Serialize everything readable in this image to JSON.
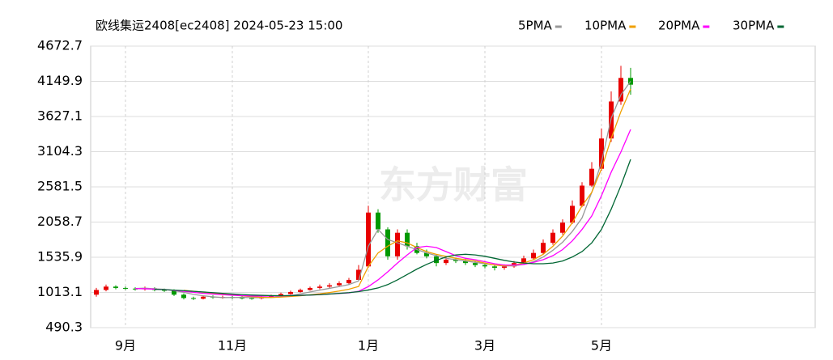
{
  "chart_data": {
    "type": "candlestick",
    "title": "欧线集运2408[ec2408] 2024-05-23 15:00",
    "watermark": "东方财富",
    "categories": [
      null,
      null,
      null,
      "9月",
      null,
      null,
      null,
      null,
      null,
      null,
      null,
      null,
      null,
      null,
      "11月",
      null,
      null,
      null,
      null,
      null,
      null,
      null,
      null,
      null,
      null,
      null,
      null,
      null,
      "1月",
      null,
      null,
      null,
      null,
      null,
      null,
      null,
      null,
      null,
      null,
      null,
      "3月",
      null,
      null,
      null,
      null,
      null,
      null,
      null,
      null,
      null,
      null,
      null,
      "5月",
      null,
      null,
      null
    ],
    "open": [
      980,
      1050,
      1100,
      1080,
      1070,
      1060,
      1075,
      1050,
      1040,
      980,
      930,
      920,
      950,
      940,
      945,
      935,
      930,
      925,
      940,
      960,
      990,
      1020,
      1050,
      1080,
      1100,
      1120,
      1150,
      1200,
      1400,
      2200,
      1950,
      1550,
      1900,
      1700,
      1600,
      1550,
      1450,
      1500,
      1480,
      1450,
      1420,
      1400,
      1380,
      1400,
      1450,
      1520,
      1600,
      1750,
      1900,
      2050,
      2300,
      2600,
      2850,
      3300,
      3850,
      4200
    ],
    "high": [
      1080,
      1130,
      1120,
      1100,
      1090,
      1100,
      1090,
      1070,
      1060,
      1000,
      950,
      970,
      970,
      965,
      960,
      955,
      950,
      960,
      980,
      1010,
      1040,
      1070,
      1100,
      1130,
      1150,
      1180,
      1230,
      1420,
      2300,
      2250,
      1980,
      1950,
      1950,
      1750,
      1650,
      1580,
      1540,
      1530,
      1510,
      1480,
      1450,
      1430,
      1430,
      1480,
      1560,
      1650,
      1800,
      1950,
      2100,
      2380,
      2650,
      2950,
      3450,
      4000,
      4380,
      4350
    ],
    "low": [
      950,
      1030,
      1060,
      1050,
      1040,
      1040,
      1030,
      1020,
      960,
      910,
      900,
      910,
      920,
      920,
      915,
      910,
      905,
      910,
      930,
      950,
      980,
      1010,
      1040,
      1060,
      1080,
      1100,
      1130,
      1180,
      1380,
      1900,
      1500,
      1500,
      1650,
      1580,
      1520,
      1400,
      1420,
      1450,
      1420,
      1390,
      1370,
      1340,
      1350,
      1380,
      1430,
      1500,
      1580,
      1720,
      1870,
      2030,
      2280,
      2580,
      2820,
      3250,
      3800,
      3950
    ],
    "close": [
      1050,
      1100,
      1080,
      1070,
      1060,
      1075,
      1050,
      1040,
      980,
      930,
      920,
      950,
      940,
      945,
      935,
      930,
      925,
      940,
      960,
      990,
      1020,
      1050,
      1080,
      1100,
      1120,
      1150,
      1200,
      1350,
      2200,
      1950,
      1550,
      1900,
      1700,
      1600,
      1550,
      1450,
      1500,
      1480,
      1450,
      1420,
      1400,
      1380,
      1400,
      1450,
      1520,
      1600,
      1750,
      1900,
      2050,
      2300,
      2600,
      2850,
      3300,
      3850,
      4200,
      4100
    ],
    "up_color": "#e80000",
    "down_color": "#009900",
    "series": [
      {
        "name": "5PMA",
        "color": "#999999",
        "values": [
          null,
          null,
          null,
          null,
          1072,
          1077,
          1067,
          1059,
          1041,
          1015,
          984,
          964,
          948,
          937,
          938,
          940,
          935,
          935,
          938,
          949,
          967,
          992,
          1020,
          1048,
          1074,
          1100,
          1130,
          1184,
          1700,
          1950,
          1800,
          1750,
          1700,
          1650,
          1600,
          1560,
          1520,
          1500,
          1480,
          1460,
          1440,
          1420,
          1405,
          1410,
          1430,
          1470,
          1540,
          1640,
          1760,
          1920,
          2120,
          2500,
          2950,
          3600,
          3950,
          4150
        ]
      },
      {
        "name": "10PMA",
        "color": "#f0a000",
        "values": [
          null,
          null,
          null,
          null,
          null,
          null,
          null,
          null,
          null,
          1044,
          1031,
          1016,
          1004,
          989,
          977,
          962,
          950,
          942,
          938,
          944,
          954,
          964,
          978,
          993,
          1012,
          1034,
          1061,
          1102,
          1400,
          1600,
          1700,
          1780,
          1750,
          1680,
          1620,
          1580,
          1550,
          1520,
          1500,
          1480,
          1450,
          1420,
          1410,
          1420,
          1450,
          1500,
          1580,
          1700,
          1850,
          2050,
          2300,
          2500,
          2850,
          3300,
          3700,
          4036
        ]
      },
      {
        "name": "20PMA",
        "color": "#ff00ff",
        "values": [
          null,
          null,
          null,
          null,
          1070,
          1068,
          1062,
          1055,
          1045,
          1030,
          1015,
          1000,
          990,
          980,
          972,
          965,
          960,
          958,
          960,
          962,
          966,
          970,
          975,
          982,
          990,
          998,
          1008,
          1030,
          1100,
          1200,
          1320,
          1450,
          1570,
          1680,
          1700,
          1680,
          1620,
          1560,
          1520,
          1500,
          1470,
          1440,
          1420,
          1420,
          1430,
          1460,
          1500,
          1560,
          1650,
          1780,
          1950,
          2150,
          2450,
          2800,
          3100,
          3435
        ]
      },
      {
        "name": "30PMA",
        "color": "#006633",
        "values": [
          null,
          null,
          null,
          null,
          null,
          null,
          1060,
          1055,
          1048,
          1040,
          1030,
          1020,
          1010,
          1000,
          990,
          982,
          975,
          970,
          966,
          965,
          966,
          970,
          975,
          980,
          990,
          1000,
          1010,
          1025,
          1050,
          1080,
          1130,
          1200,
          1280,
          1360,
          1430,
          1490,
          1540,
          1570,
          1580,
          1570,
          1550,
          1520,
          1490,
          1465,
          1450,
          1440,
          1440,
          1450,
          1480,
          1540,
          1620,
          1750,
          1950,
          2250,
          2600,
          2990
        ]
      }
    ],
    "ylim": [
      490.3,
      4672.7
    ],
    "yticks": [
      490.3,
      1013.1,
      1535.9,
      2058.7,
      2581.5,
      3104.3,
      3627.1,
      4149.9,
      4672.7
    ],
    "grid": true
  }
}
